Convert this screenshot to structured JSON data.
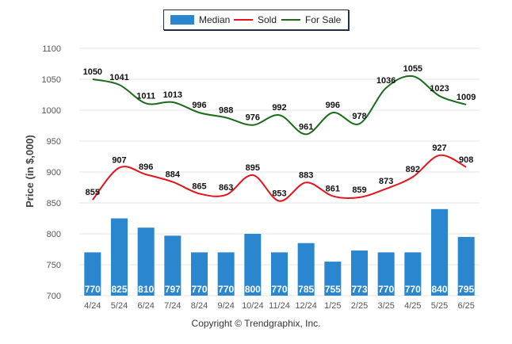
{
  "chart_data": {
    "type": "bar",
    "categories": [
      "4/24",
      "5/24",
      "6/24",
      "7/24",
      "8/24",
      "9/24",
      "10/24",
      "11/24",
      "12/24",
      "1/25",
      "2/25",
      "3/25",
      "4/25",
      "5/25",
      "6/25"
    ],
    "series": [
      {
        "name": "Median",
        "type": "bar",
        "color": "#2a86cf",
        "values": [
          770,
          825,
          810,
          797,
          770,
          770,
          800,
          770,
          785,
          755,
          773,
          770,
          770,
          840,
          795
        ]
      },
      {
        "name": "Sold",
        "type": "line",
        "color": "#e3141b",
        "values": [
          855,
          907,
          896,
          884,
          865,
          863,
          895,
          853,
          883,
          861,
          859,
          873,
          892,
          927,
          908
        ]
      },
      {
        "name": "For Sale",
        "type": "line",
        "color": "#1a6b1a",
        "values": [
          1050,
          1041,
          1011,
          1013,
          996,
          988,
          976,
          992,
          961,
          996,
          978,
          1036,
          1055,
          1023,
          1009
        ]
      }
    ],
    "ylabel": "Price (in $,000)",
    "ylim": [
      700,
      1100
    ],
    "yticks": [
      700,
      750,
      800,
      850,
      900,
      950,
      1000,
      1050,
      1100
    ],
    "grid": true,
    "legend_position": "top-center"
  },
  "legend": {
    "median": "Median",
    "sold": "Sold",
    "for_sale": "For Sale"
  },
  "footer": "Copyright © Trendgraphix, Inc."
}
